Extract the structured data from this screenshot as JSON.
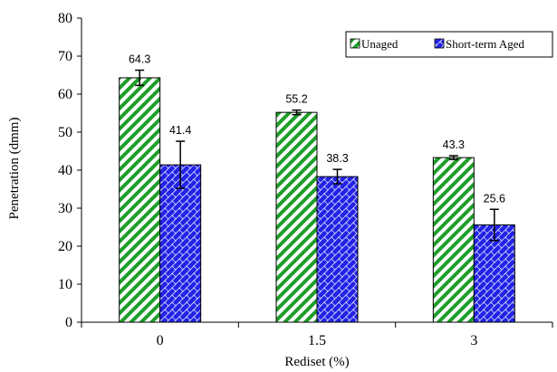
{
  "chart_data": {
    "type": "bar",
    "categories": [
      "0",
      "1.5",
      "3"
    ],
    "series": [
      {
        "name": "Unaged",
        "values": [
          64.3,
          55.2,
          43.3
        ],
        "error": [
          2.0,
          0.6,
          0.5
        ],
        "labels": [
          "64.3",
          "55.2",
          "43.3"
        ]
      },
      {
        "name": "Short-term Aged",
        "values": [
          41.4,
          38.3,
          25.6
        ],
        "error": [
          6.2,
          1.9,
          4.1
        ],
        "labels": [
          "41.4",
          "38.3",
          "25.6"
        ]
      }
    ],
    "xlabel": "Rediset (%)",
    "ylabel": "Penetration (dmm)",
    "ylim": [
      0,
      80
    ],
    "yticks": [
      "0",
      "10",
      "20",
      "30",
      "40",
      "50",
      "60",
      "70",
      "80"
    ],
    "grid": false,
    "legend_position": "top-right",
    "colors": {
      "Unaged": "#1e9e2a",
      "Short-term Aged": "#2323e6"
    }
  }
}
